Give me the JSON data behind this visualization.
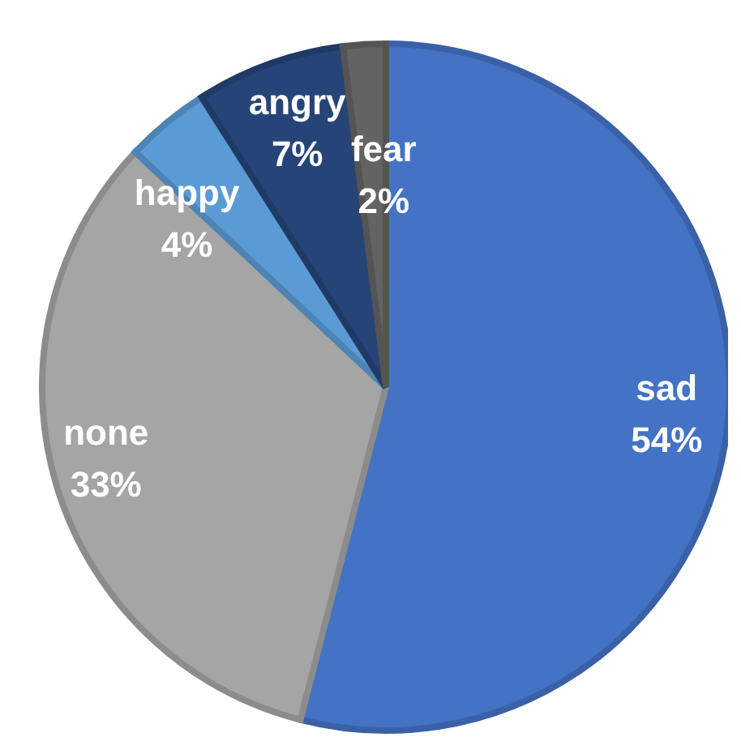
{
  "chart_data": {
    "type": "pie",
    "categories": [
      "sad",
      "none",
      "happy",
      "angry",
      "fear"
    ],
    "values": [
      54,
      33,
      4,
      7,
      2
    ],
    "colors": [
      "#4472c4",
      "#a5a5a5",
      "#5b9bd5",
      "#264478",
      "#636363"
    ],
    "value_labels": [
      "54%",
      "33%",
      "4%",
      "7%",
      "2%"
    ],
    "legend": false
  }
}
